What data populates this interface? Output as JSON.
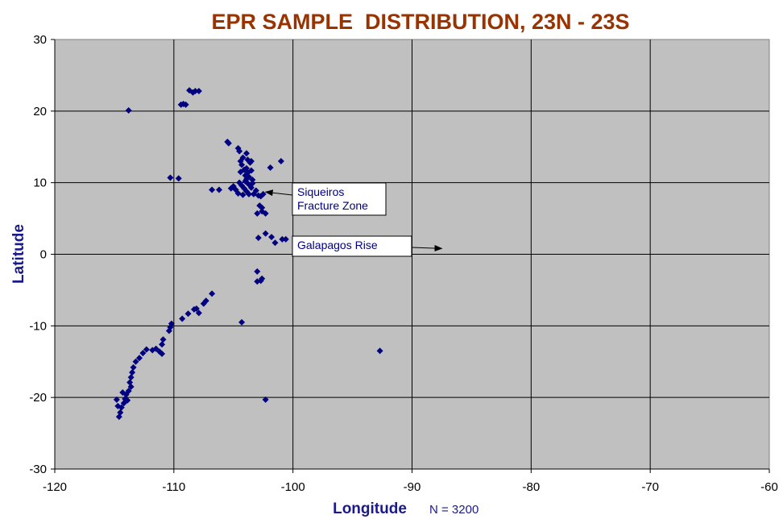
{
  "chart_data": {
    "type": "scatter",
    "title": "EPR SAMPLE  DISTRIBUTION, 23N - 23S",
    "xlabel": "Longitude",
    "ylabel": "Latitude",
    "note": "N = 3200",
    "xlim": [
      -120,
      -60
    ],
    "ylim": [
      -30,
      30
    ],
    "x_ticks": [
      -120,
      -110,
      -100,
      -90,
      -80,
      -70,
      -60
    ],
    "y_ticks": [
      -30,
      -20,
      -10,
      0,
      10,
      20,
      30
    ],
    "grid": true,
    "background_color": "#c0c0c0",
    "marker_color": "#000080",
    "annotations": [
      {
        "text": [
          "Siqueiros",
          "Fracture Zone"
        ],
        "arrow_to": [
          -102.3,
          8.7
        ]
      },
      {
        "text": [
          "Galapagos Rise"
        ],
        "arrow_to": [
          -87.5,
          0.8
        ]
      }
    ],
    "points": [
      [
        -113.8,
        20.1
      ],
      [
        -109.4,
        20.9
      ],
      [
        -109.2,
        21.0
      ],
      [
        -109.0,
        20.9
      ],
      [
        -108.7,
        22.9
      ],
      [
        -108.4,
        22.6
      ],
      [
        -108.2,
        22.8
      ],
      [
        -107.9,
        22.8
      ],
      [
        -110.3,
        10.7
      ],
      [
        -109.6,
        10.6
      ],
      [
        -106.8,
        9.0
      ],
      [
        -106.2,
        9.0
      ],
      [
        -105.5,
        15.7
      ],
      [
        -105.4,
        15.5
      ],
      [
        -105.2,
        9.2
      ],
      [
        -105.0,
        9.5
      ],
      [
        -104.8,
        9.0
      ],
      [
        -104.6,
        14.8
      ],
      [
        -104.5,
        14.4
      ],
      [
        -104.4,
        13.0
      ],
      [
        -104.3,
        12.5
      ],
      [
        -104.2,
        13.5
      ],
      [
        -104.1,
        11.8
      ],
      [
        -104.0,
        11.0
      ],
      [
        -104.0,
        10.2
      ],
      [
        -103.9,
        14.1
      ],
      [
        -103.9,
        12.0
      ],
      [
        -103.8,
        13.2
      ],
      [
        -103.8,
        11.4
      ],
      [
        -103.7,
        10.8
      ],
      [
        -103.6,
        12.8
      ],
      [
        -103.5,
        13.0
      ],
      [
        -103.5,
        11.7
      ],
      [
        -103.4,
        10.4
      ],
      [
        -104.5,
        10.0
      ],
      [
        -104.3,
        9.6
      ],
      [
        -104.1,
        9.2
      ],
      [
        -103.9,
        8.8
      ],
      [
        -103.7,
        8.4
      ],
      [
        -103.5,
        9.3
      ],
      [
        -103.3,
        8.4
      ],
      [
        -103.1,
        8.9
      ],
      [
        -102.9,
        8.2
      ],
      [
        -102.7,
        8.1
      ],
      [
        -102.5,
        8.4
      ],
      [
        -104.6,
        8.5
      ],
      [
        -104.2,
        8.3
      ],
      [
        -103.8,
        9.9
      ],
      [
        -103.6,
        9.6
      ],
      [
        -103.4,
        9.9
      ],
      [
        -104.4,
        11.5
      ],
      [
        -103.9,
        10.5
      ],
      [
        -102.8,
        6.8
      ],
      [
        -102.6,
        6.5
      ],
      [
        -103.0,
        5.7
      ],
      [
        -102.6,
        6.0
      ],
      [
        -102.3,
        5.7
      ],
      [
        -101.9,
        12.1
      ],
      [
        -101.0,
        13.0
      ],
      [
        -101.5,
        1.6
      ],
      [
        -102.9,
        2.3
      ],
      [
        -102.3,
        2.9
      ],
      [
        -101.8,
        2.4
      ],
      [
        -100.9,
        2.1
      ],
      [
        -100.6,
        2.1
      ],
      [
        -103.0,
        -2.4
      ],
      [
        -103.0,
        -3.8
      ],
      [
        -102.7,
        -3.7
      ],
      [
        -102.6,
        -3.4
      ],
      [
        -104.3,
        -9.5
      ],
      [
        -92.7,
        -13.5
      ],
      [
        -102.3,
        -20.3
      ],
      [
        -106.8,
        -5.5
      ],
      [
        -107.3,
        -6.5
      ],
      [
        -107.5,
        -6.9
      ],
      [
        -108.1,
        -7.6
      ],
      [
        -107.9,
        -8.2
      ],
      [
        -108.3,
        -7.7
      ],
      [
        -108.8,
        -8.3
      ],
      [
        -109.3,
        -9.0
      ],
      [
        -110.2,
        -9.7
      ],
      [
        -110.3,
        -10.2
      ],
      [
        -110.4,
        -10.7
      ],
      [
        -110.9,
        -11.9
      ],
      [
        -111.0,
        -12.6
      ],
      [
        -111.2,
        -13.6
      ],
      [
        -111.0,
        -13.9
      ],
      [
        -111.5,
        -13.2
      ],
      [
        -111.8,
        -13.4
      ],
      [
        -112.3,
        -13.3
      ],
      [
        -112.6,
        -13.8
      ],
      [
        -112.9,
        -14.5
      ],
      [
        -113.2,
        -15.0
      ],
      [
        -113.4,
        -15.8
      ],
      [
        -113.5,
        -16.5
      ],
      [
        -113.6,
        -17.2
      ],
      [
        -113.7,
        -17.9
      ],
      [
        -113.6,
        -18.5
      ],
      [
        -113.8,
        -19.1
      ],
      [
        -114.0,
        -19.6
      ],
      [
        -114.1,
        -20.2
      ],
      [
        -114.2,
        -20.8
      ],
      [
        -114.4,
        -21.4
      ],
      [
        -114.5,
        -22.1
      ],
      [
        -114.6,
        -22.7
      ],
      [
        -114.8,
        -20.3
      ],
      [
        -114.7,
        -21.2
      ],
      [
        -114.3,
        -19.3
      ],
      [
        -113.9,
        -20.4
      ]
    ]
  }
}
